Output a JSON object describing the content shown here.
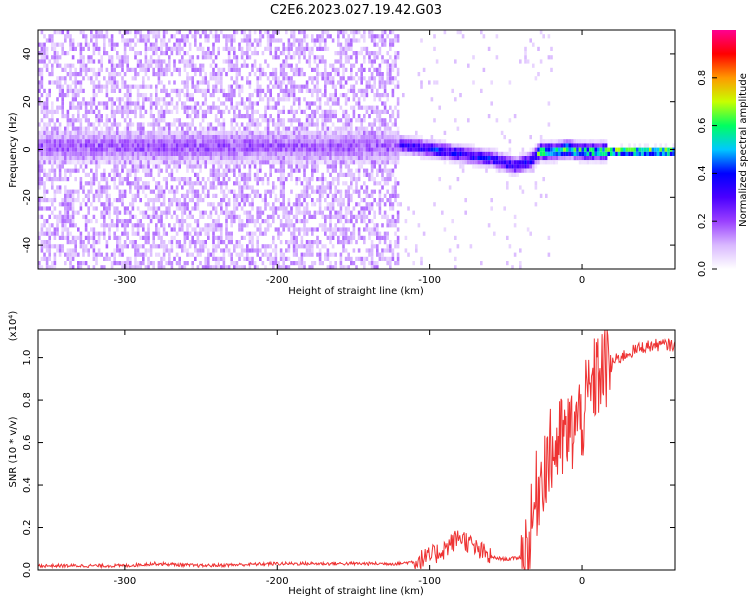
{
  "title": "C2E6.2023.027.19.42.G03",
  "chart_data": [
    {
      "type": "heatmap",
      "xlabel": "Height of straight line (km)",
      "ylabel": "Frequency (Hz)",
      "xlim": [
        -357,
        61
      ],
      "ylim": [
        -50,
        50
      ],
      "xticks": [
        -300,
        -200,
        -100,
        0
      ],
      "yticks": [
        -40,
        -20,
        0,
        20,
        40
      ],
      "xtick_labels": [
        "-300",
        "-200",
        "-100",
        "0"
      ],
      "ytick_labels": [
        "-40",
        "-20",
        "0",
        "20",
        "40"
      ],
      "colorbar": {
        "label": "Normalized spectral amplitude",
        "range": [
          0,
          1
        ],
        "ticks": [
          0.0,
          0.2,
          0.4,
          0.6,
          0.8
        ],
        "tick_labels": [
          "0.0",
          "0.2",
          "0.4",
          "0.6",
          "0.8"
        ],
        "colormap": [
          "#ffffff",
          "#d9b8ff",
          "#9a40ff",
          "#4a00ff",
          "#0000ff",
          "#00c8ff",
          "#00ff60",
          "#c8ff00",
          "#ff9900",
          "#ff0000",
          "#ff0090"
        ]
      },
      "ridge": {
        "x": [
          -120,
          -100,
          -80,
          -60,
          -45,
          -35,
          -28,
          -20,
          -10,
          0,
          10,
          20,
          40,
          61
        ],
        "y": [
          3,
          1,
          -1,
          -3,
          -6,
          -4,
          0,
          0,
          1,
          0,
          0,
          0,
          0,
          0
        ]
      }
    },
    {
      "type": "line",
      "xlabel": "Height of straight line (km)",
      "ylabel": "SNR (10 * v/v)",
      "yscale_label": "(x10⁴)",
      "xlim": [
        -357,
        61
      ],
      "ylim": [
        0,
        1.13
      ],
      "xticks": [
        -300,
        -200,
        -100,
        0
      ],
      "yticks": [
        0.0,
        0.2,
        0.4,
        0.6,
        0.8,
        1.0
      ],
      "xtick_labels": [
        "-300",
        "-200",
        "-100",
        "0"
      ],
      "ytick_labels": [
        "0.0",
        "0.2",
        "0.4",
        "0.6",
        "0.8",
        "1.0"
      ],
      "color": "#ee3333",
      "series": [
        {
          "x": [
            -357,
            -300,
            -280,
            -250,
            -200,
            -150,
            -120,
            -110,
            -100,
            -90,
            -80,
            -70,
            -60,
            -50,
            -40,
            -35,
            -30,
            -25,
            -20,
            -15,
            -10,
            -5,
            0,
            5,
            10,
            20,
            30,
            40,
            50,
            61
          ],
          "values": [
            0.02,
            0.02,
            0.03,
            0.02,
            0.03,
            0.03,
            0.03,
            0.04,
            0.06,
            0.1,
            0.16,
            0.1,
            0.06,
            0.05,
            0.06,
            0.1,
            0.35,
            0.5,
            0.55,
            0.6,
            0.62,
            0.68,
            0.72,
            0.82,
            0.92,
            0.98,
            1.02,
            1.05,
            1.06,
            1.06
          ]
        }
      ]
    }
  ]
}
